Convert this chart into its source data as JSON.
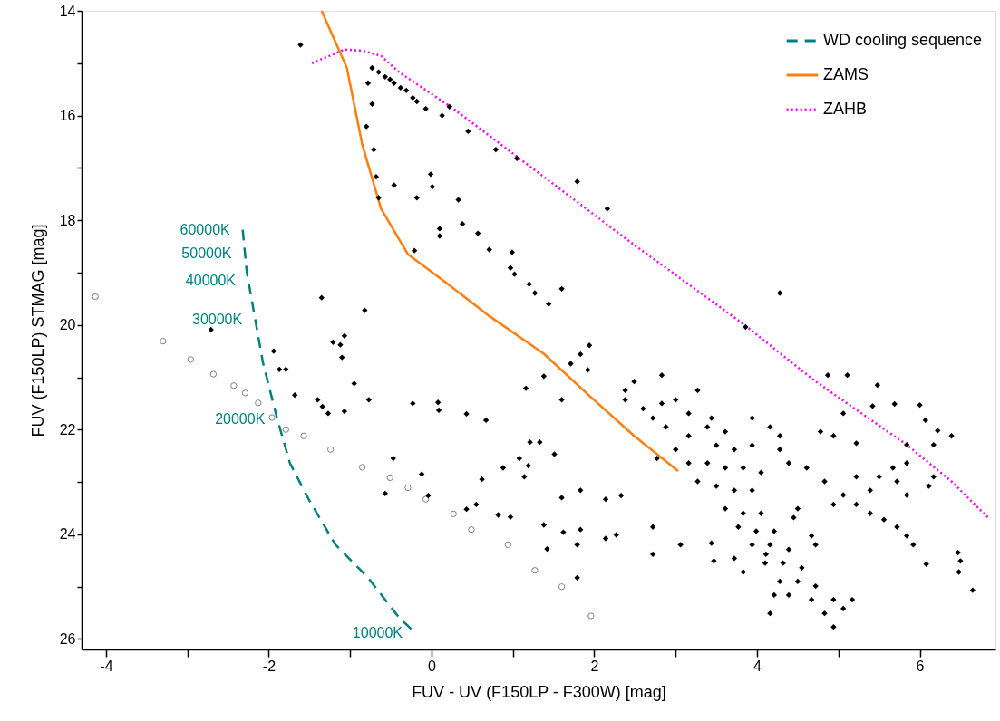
{
  "chart_data": {
    "type": "scatter",
    "xlabel": "FUV - UV (F150LP - F300W) [mag]",
    "ylabel": "FUV (F150LP) STMAG [mag]",
    "xlim": [
      -4.3,
      6.93
    ],
    "ylim": [
      26.2,
      14
    ],
    "xticks": [
      -4,
      {
        "value": -3,
        "label": null
      },
      -2,
      {
        "value": -1,
        "label": null
      },
      0,
      {
        "value": 1,
        "label": null
      },
      2,
      {
        "value": 3,
        "label": null
      },
      4,
      {
        "value": 5,
        "label": null
      },
      6
    ],
    "yticks": [
      14,
      {
        "value": 15,
        "label": null
      },
      16,
      {
        "value": 17,
        "label": null
      },
      18,
      {
        "value": 19,
        "label": null
      },
      20,
      {
        "value": 21,
        "label": null
      },
      22,
      {
        "value": 23,
        "label": null
      },
      24,
      {
        "value": 25,
        "label": null
      },
      26
    ],
    "grid": false,
    "legend": "top right",
    "series": [
      {
        "name": "WD cooling sequence",
        "type": "line",
        "color": "#008080",
        "line_style": "dashed",
        "x": [
          -2.32,
          -2.27,
          -2.16,
          -2.07,
          -1.9,
          -1.74,
          -1.51,
          -1.18,
          -0.79,
          -0.4,
          -0.2
        ],
        "values": [
          18.18,
          18.99,
          19.95,
          20.73,
          21.77,
          22.64,
          23.33,
          24.2,
          24.81,
          25.59,
          25.88
        ]
      },
      {
        "name": "ZAMS",
        "type": "line",
        "color": "#ff7f0e",
        "line_style": "solid",
        "x": [
          -1.35,
          -1.04,
          -0.85,
          -0.62,
          -0.29,
          0.16,
          0.71,
          1.38,
          1.93,
          2.49,
          3.03
        ],
        "values": [
          14.0,
          15.09,
          16.56,
          17.78,
          18.65,
          19.17,
          19.83,
          20.55,
          21.34,
          22.12,
          22.79
        ]
      },
      {
        "name": "ZAHB",
        "type": "line",
        "color": "#ff00ff",
        "line_style": "dotted",
        "x": [
          -1.47,
          -1.07,
          -0.85,
          -0.62,
          -0.4,
          0.27,
          1.38,
          2.49,
          3.83,
          4.72,
          5.84,
          6.39,
          6.61,
          6.84
        ],
        "values": [
          15.0,
          14.74,
          14.76,
          14.86,
          15.17,
          15.87,
          17.17,
          18.47,
          19.98,
          21.08,
          22.29,
          22.99,
          23.33,
          23.68
        ]
      },
      {
        "type": "scatter",
        "color": "#808080",
        "marker": "circle",
        "x": [
          -4.13,
          -3.3,
          -2.96,
          -2.68,
          -2.43,
          -2.29,
          -2.13,
          -1.96,
          -1.79,
          -1.57,
          -1.24,
          -0.85,
          -0.51,
          -0.29,
          -0.07,
          0.27,
          0.49,
          0.94,
          1.27,
          1.6,
          1.96
        ],
        "values": [
          19.46,
          20.31,
          20.66,
          20.94,
          21.16,
          21.3,
          21.49,
          21.77,
          22.0,
          22.12,
          22.38,
          22.72,
          22.92,
          23.11,
          23.33,
          23.61,
          23.91,
          24.2,
          24.69,
          25.0,
          25.56
        ]
      },
      {
        "type": "scatter",
        "color": "#000000",
        "marker": "diamond",
        "x": [
          -1.61,
          -0.73,
          -0.65,
          -0.57,
          -0.51,
          -0.46,
          -0.38,
          -0.31,
          -0.23,
          -0.18,
          -0.07,
          0.13,
          0.22,
          0.45,
          0.79,
          1.05,
          1.79,
          2.16,
          -0.78,
          -0.73,
          -0.8,
          -0.71,
          -0.68,
          -0.65,
          -0.46,
          -0.01,
          -0.18,
          0.01,
          0.33,
          0.1,
          0.38,
          -0.21,
          0.1,
          0.57,
          0.71,
          0.99,
          0.97,
          1.02,
          1.2,
          1.27,
          1.6,
          1.44,
          4.28,
          -1.35,
          -0.82,
          -2.71,
          3.86,
          -1.12,
          -1.07,
          -1.21,
          -1.94,
          -1.87,
          -1.79,
          -1.1,
          -1.68,
          -1.4,
          -1.34,
          -1.27,
          -1.07,
          -0.77,
          -0.95,
          -0.23,
          0.08,
          0.09,
          0.43,
          0.67,
          0.62,
          0.88,
          1.08,
          1.14,
          1.19,
          1.33,
          1.21,
          -0.47,
          -0.12,
          1.16,
          1.38,
          1.71,
          1.83,
          1.94,
          1.92,
          2.38,
          2.83,
          1.6,
          1.51,
          1.83,
          1.6,
          2.14,
          -0.57,
          -0.04,
          0.55,
          0.43,
          0.82,
          0.97,
          1.38,
          1.42,
          1.62,
          1.83,
          1.79,
          2.27,
          2.14,
          2.72,
          2.33,
          2.72,
          1.79,
          3.06,
          3.44,
          3.72,
          4.11,
          3.47,
          4.45,
          4.28,
          2.49,
          2.38,
          2.6,
          2.72,
          2.88,
          3.16,
          3.39,
          3.61,
          3.5,
          3.72,
          3.94,
          3.16,
          3.39,
          3.61,
          3.83,
          4.05,
          3.27,
          3.5,
          3.72,
          3.94,
          3.61,
          3.83,
          4.05,
          3.77,
          3.99,
          4.21,
          3.94,
          4.16,
          4.39,
          4.1,
          4.32,
          4.55,
          4.28,
          4.5,
          4.72,
          4.39,
          4.67,
          4.94,
          5.17,
          4.83,
          5.06,
          4.94,
          4.16,
          4.21,
          3.83,
          4.5,
          4.72,
          3.0,
          2.77,
          3.27,
          2.83,
          3.0,
          3.16,
          3.44,
          3.94,
          4.16,
          4.28,
          4.39,
          4.61,
          4.83,
          5.06,
          5.22,
          5.39,
          5.56,
          5.72,
          5.84,
          5.92,
          5.84,
          5.84,
          5.67,
          5.5,
          5.72,
          4.94,
          5.22,
          5.39,
          4.78,
          4.94,
          4.67,
          6.11,
          6.17,
          4.87,
          5.11,
          5.48,
          5.69,
          6.0,
          5.42,
          6.07,
          5.84,
          6.17,
          6.22,
          5.22,
          5.06,
          6.39,
          6.08,
          6.47,
          6.5,
          6.48,
          6.65
        ],
        "values": [
          14.65,
          15.09,
          15.17,
          15.26,
          15.31,
          15.38,
          15.47,
          15.52,
          15.66,
          15.73,
          15.87,
          16.0,
          15.83,
          16.3,
          16.65,
          16.82,
          17.26,
          17.78,
          15.38,
          15.78,
          16.21,
          16.65,
          17.17,
          17.57,
          17.33,
          17.12,
          17.57,
          17.36,
          17.61,
          18.16,
          18.07,
          18.58,
          18.3,
          18.25,
          18.56,
          18.61,
          18.91,
          19.03,
          19.22,
          19.39,
          19.31,
          19.6,
          19.39,
          19.48,
          19.72,
          20.09,
          20.04,
          20.38,
          20.21,
          20.33,
          20.5,
          20.85,
          20.85,
          20.62,
          21.34,
          21.43,
          21.56,
          21.69,
          21.65,
          21.43,
          21.12,
          21.5,
          21.48,
          21.63,
          21.7,
          21.82,
          22.95,
          22.73,
          22.55,
          22.9,
          22.69,
          22.24,
          22.24,
          22.55,
          22.85,
          21.21,
          20.98,
          20.74,
          20.56,
          20.39,
          20.86,
          21.43,
          20.96,
          21.43,
          22.47,
          23.16,
          23.3,
          23.33,
          23.22,
          23.26,
          23.43,
          23.52,
          23.63,
          23.67,
          23.82,
          24.28,
          23.96,
          23.91,
          24.2,
          24.01,
          24.08,
          23.86,
          23.26,
          24.38,
          24.83,
          24.2,
          24.17,
          24.46,
          24.38,
          24.51,
          23.68,
          22.38,
          21.08,
          21.25,
          21.6,
          21.78,
          21.95,
          22.12,
          21.95,
          22.04,
          22.3,
          22.38,
          22.3,
          22.64,
          22.64,
          22.73,
          22.73,
          22.82,
          22.99,
          23.08,
          23.16,
          23.16,
          23.51,
          23.6,
          23.6,
          23.86,
          23.94,
          23.94,
          24.2,
          24.2,
          24.29,
          24.55,
          24.55,
          24.64,
          24.9,
          24.9,
          24.99,
          25.16,
          25.25,
          25.25,
          25.25,
          25.51,
          25.42,
          25.77,
          25.51,
          25.16,
          24.72,
          23.51,
          24.2,
          22.38,
          22.55,
          21.25,
          21.5,
          21.43,
          21.69,
          21.78,
          21.78,
          21.95,
          22.12,
          22.64,
          22.73,
          22.99,
          23.25,
          23.43,
          23.6,
          23.72,
          23.86,
          24.03,
          24.2,
          23.25,
          22.64,
          22.73,
          22.9,
          22.99,
          23.43,
          22.9,
          23.16,
          22.04,
          22.12,
          24.03,
          23.08,
          22.9,
          20.96,
          20.96,
          21.15,
          21.51,
          21.53,
          21.55,
          21.82,
          22.29,
          22.29,
          22.02,
          22.26,
          21.69,
          22.12,
          24.57,
          24.35,
          24.51,
          24.72,
          25.07
        ]
      }
    ],
    "annotations": [
      {
        "text": "60000K",
        "x": -2.32,
        "y": 18.18
      },
      {
        "text": "50000K",
        "x": -2.3,
        "y": 18.63
      },
      {
        "text": "40000K",
        "x": -2.25,
        "y": 19.15
      },
      {
        "text": "30000K",
        "x": -2.17,
        "y": 19.9
      },
      {
        "text": "20000K",
        "x": -1.89,
        "y": 21.81
      },
      {
        "text": "10000K",
        "x": -0.2,
        "y": 25.88
      }
    ]
  }
}
